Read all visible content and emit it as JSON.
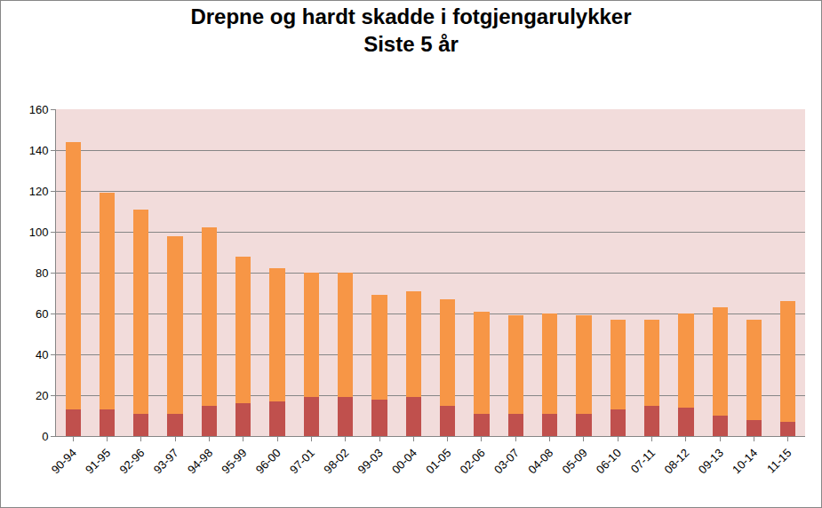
{
  "chart_data": {
    "type": "bar",
    "stacked": true,
    "title": "Drepne og hardt skadde i fotgjengarulykker",
    "subtitle": "Siste 5 år",
    "categories": [
      "90-94",
      "91-95",
      "92-96",
      "93-97",
      "94-98",
      "95-99",
      "96-00",
      "97-01",
      "98-02",
      "99-03",
      "00-04",
      "01-05",
      "02-06",
      "03-07",
      "04-08",
      "05-09",
      "06-10",
      "07-11",
      "08-12",
      "09-13",
      "10-14",
      "11-15"
    ],
    "series": [
      {
        "color": "#c0504d",
        "values": [
          13,
          13,
          11,
          11,
          15,
          16,
          17,
          19,
          19,
          18,
          19,
          15,
          11,
          11,
          11,
          11,
          13,
          15,
          14,
          10,
          8,
          7
        ]
      },
      {
        "color": "#f79646",
        "values": [
          131,
          106,
          100,
          87,
          87,
          72,
          65,
          61,
          61,
          51,
          52,
          52,
          50,
          48,
          49,
          48,
          44,
          42,
          46,
          53,
          49,
          59
        ]
      }
    ],
    "ylim": [
      0,
      160
    ],
    "yticks": [
      0,
      20,
      40,
      60,
      80,
      100,
      120,
      140,
      160
    ],
    "grid": true
  }
}
